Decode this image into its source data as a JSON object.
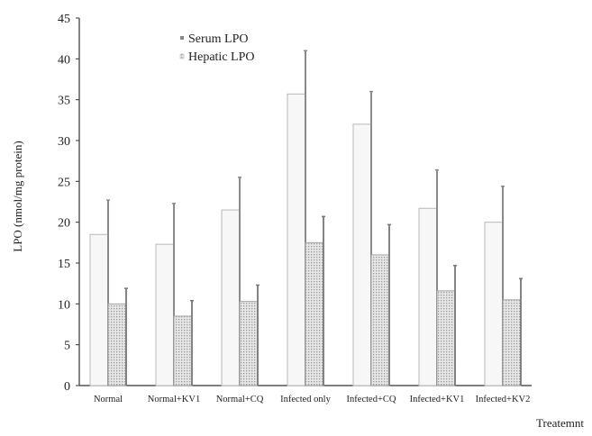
{
  "chart_data": {
    "type": "bar",
    "categories": [
      "Normal",
      "Normal+KV1",
      "Normal+CQ",
      "Infected only",
      "Infected+CQ",
      "Infected+KV1",
      "Infected+KV2"
    ],
    "series": [
      {
        "name": "Serum LPO",
        "values": [
          18.5,
          17.3,
          21.5,
          35.7,
          32.0,
          21.7,
          20.0
        ],
        "errors": [
          4.2,
          5.0,
          4.0,
          5.3,
          4.0,
          4.7,
          4.4
        ],
        "color": "#f4f4f4"
      },
      {
        "name": "Hepatic LPO",
        "values": [
          10.0,
          8.5,
          10.3,
          17.5,
          16.0,
          11.6,
          10.5
        ],
        "errors": [
          1.9,
          1.9,
          2.0,
          3.2,
          3.7,
          3.1,
          2.6
        ],
        "color": "#d9d9d9"
      }
    ],
    "ylabel": "LPO (nmol/mg protein)",
    "xlabel": "Treatemnt",
    "ylim": [
      0,
      45
    ],
    "yticks": [
      0,
      5,
      10,
      15,
      20,
      25,
      30,
      35,
      40,
      45
    ],
    "legend_position": "top-left",
    "grid": false
  }
}
